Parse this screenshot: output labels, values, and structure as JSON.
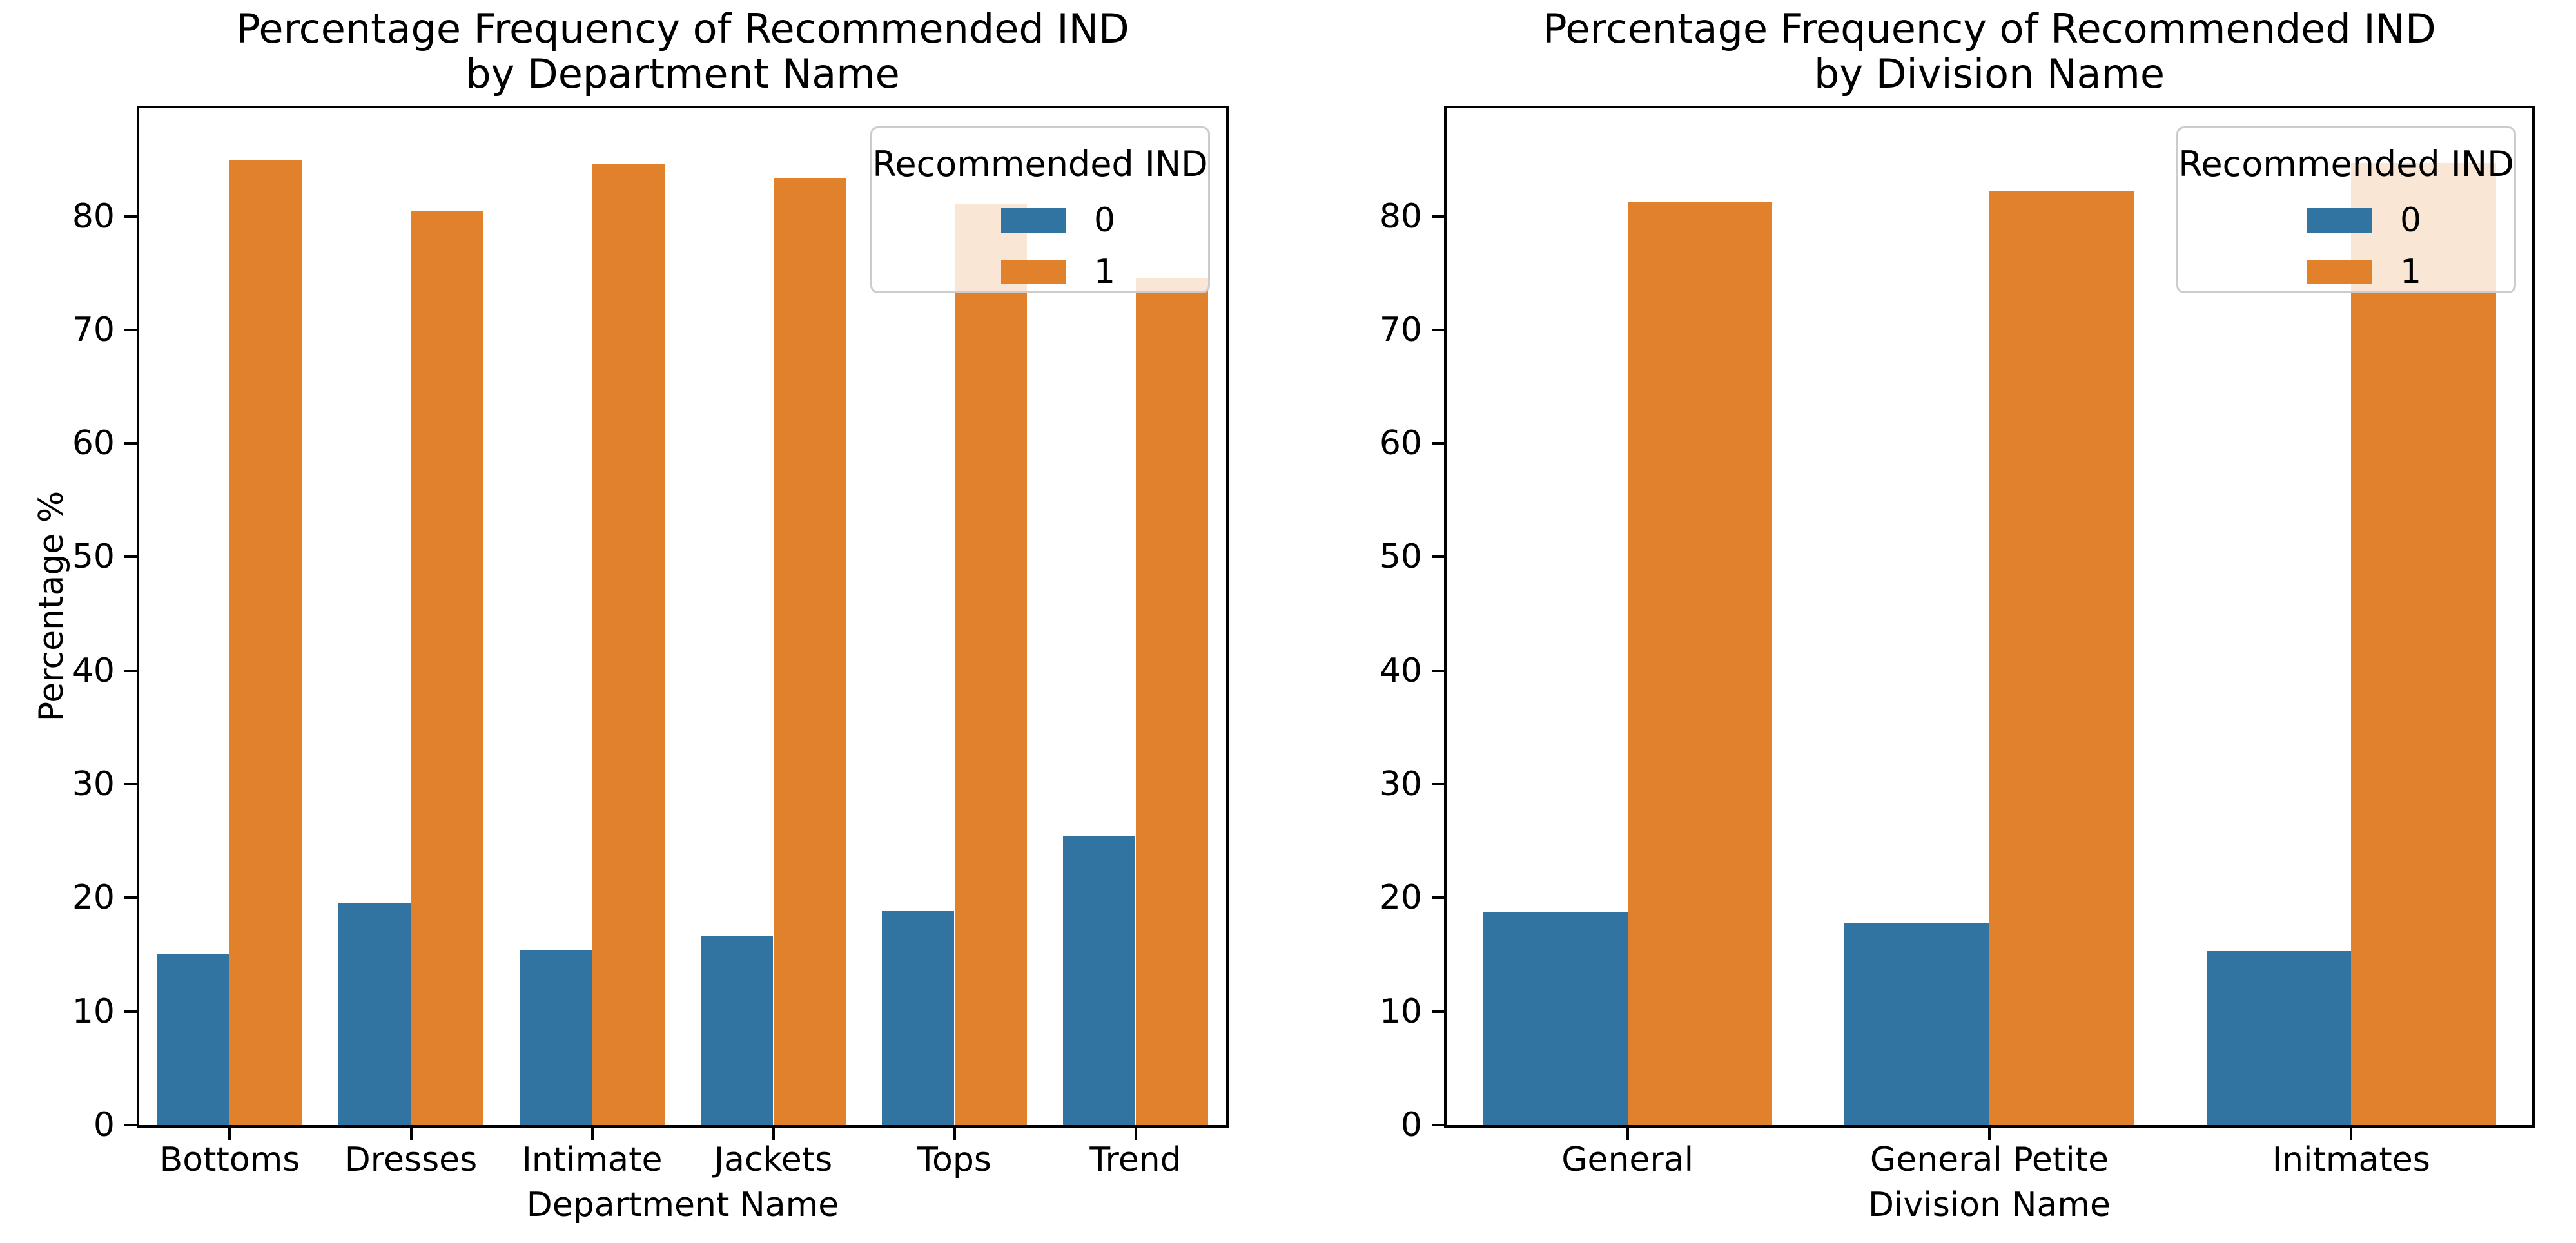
{
  "figure": {
    "background": "#ffffff",
    "text_color": "#000000"
  },
  "colors": {
    "series_0_blue": "#3274a1",
    "series_1_orange": "#e1812c",
    "legend_border": "#cccccc",
    "legend_background": "rgba(255,255,255,0.8)",
    "spine": "#000000"
  },
  "chart_data": [
    {
      "type": "bar",
      "title": "Percentage Frequency of Recommended IND by Department Name",
      "title_line1": "Percentage Frequency of Recommended IND",
      "title_line2": "by Department Name",
      "xlabel": "Department Name",
      "ylabel": "Percentage %",
      "categories": [
        "Bottoms",
        "Dresses",
        "Intimate",
        "Jackets",
        "Tops",
        "Trend"
      ],
      "series": [
        {
          "name": "0",
          "color": "#3274a1",
          "values": [
            15.1,
            19.5,
            15.4,
            16.7,
            18.9,
            25.4
          ]
        },
        {
          "name": "1",
          "color": "#e1812c",
          "values": [
            84.9,
            80.5,
            84.6,
            83.3,
            81.1,
            74.6
          ]
        }
      ],
      "ylim": [
        0,
        89.5
      ],
      "yticks": [
        0,
        10,
        20,
        30,
        40,
        50,
        60,
        70,
        80
      ],
      "grid": "off",
      "legend": {
        "title": "Recommended IND",
        "labels": [
          "0",
          "1"
        ],
        "position": "upper right"
      }
    },
    {
      "type": "bar",
      "title": "Percentage Frequency of Recommended IND by Division Name",
      "title_line1": "Percentage Frequency of Recommended IND",
      "title_line2": "by Division Name",
      "xlabel": "Division Name",
      "ylabel": "",
      "categories": [
        "General",
        "General Petite",
        "Initmates"
      ],
      "series": [
        {
          "name": "0",
          "color": "#3274a1",
          "values": [
            18.7,
            17.8,
            15.3
          ]
        },
        {
          "name": "1",
          "color": "#e1812c",
          "values": [
            81.3,
            82.2,
            84.7
          ]
        }
      ],
      "ylim": [
        0,
        89.5
      ],
      "yticks": [
        0,
        10,
        20,
        30,
        40,
        50,
        60,
        70,
        80
      ],
      "grid": "off",
      "legend": {
        "title": "Recommended IND",
        "labels": [
          "0",
          "1"
        ],
        "position": "upper right"
      }
    }
  ]
}
